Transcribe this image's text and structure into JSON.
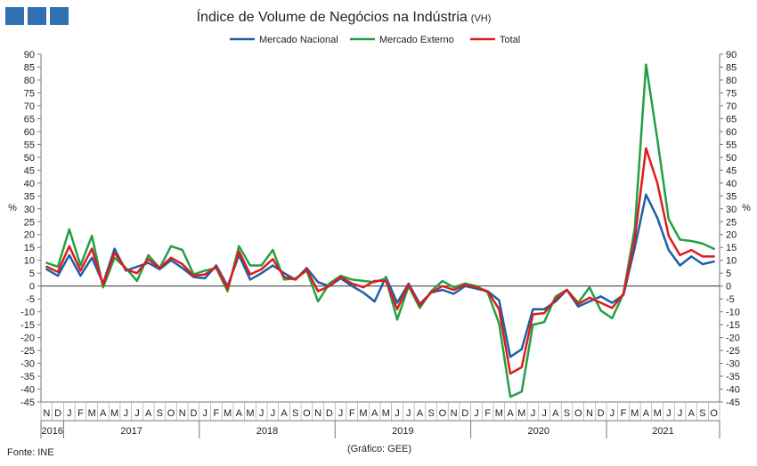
{
  "logo": {
    "color": "#2f6fb3"
  },
  "source_label": "Fonte: INE",
  "credit_label": "(Gráfico: GEE)",
  "chart_data": {
    "type": "line",
    "title": "Índice de Volume de Negócios na Indústria",
    "title_suffix": "(VH)",
    "ylabel_left": "%",
    "ylabel_right": "%",
    "ylim": [
      -45,
      90
    ],
    "yticks": [
      -45,
      -40,
      -35,
      -30,
      -25,
      -20,
      -15,
      -10,
      -5,
      0,
      5,
      10,
      15,
      20,
      25,
      30,
      35,
      40,
      45,
      50,
      55,
      60,
      65,
      70,
      75,
      80,
      85,
      90
    ],
    "grid": false,
    "legend_position": "top",
    "x": [
      "N",
      "D",
      "J",
      "F",
      "M",
      "A",
      "M",
      "J",
      "J",
      "A",
      "S",
      "O",
      "N",
      "D",
      "J",
      "F",
      "M",
      "A",
      "M",
      "J",
      "J",
      "A",
      "S",
      "O",
      "N",
      "D",
      "J",
      "F",
      "M",
      "A",
      "M",
      "J",
      "J",
      "A",
      "S",
      "O",
      "N",
      "D",
      "J",
      "F",
      "M",
      "A",
      "M",
      "J",
      "J",
      "A",
      "S",
      "O",
      "N",
      "D",
      "J",
      "F",
      "M",
      "A",
      "M",
      "J",
      "J",
      "A",
      "S",
      "O"
    ],
    "years": [
      {
        "label": "2016",
        "start": 0,
        "count": 2
      },
      {
        "label": "2017",
        "start": 2,
        "count": 12
      },
      {
        "label": "2018",
        "start": 14,
        "count": 12
      },
      {
        "label": "2019",
        "start": 26,
        "count": 12
      },
      {
        "label": "2020",
        "start": 38,
        "count": 12
      },
      {
        "label": "2021",
        "start": 50,
        "count": 10
      }
    ],
    "series": [
      {
        "name": "Mercado Nacional",
        "color": "#1f5fa8",
        "values": [
          6.5,
          4,
          12,
          4,
          11,
          1,
          14.5,
          6,
          7.5,
          9,
          6.5,
          10,
          7,
          3.5,
          3,
          8,
          0,
          12,
          2.5,
          5,
          8,
          5,
          2.5,
          7,
          1.5,
          0,
          3,
          0,
          -2.5,
          -6,
          3.5,
          -6.5,
          1,
          -7,
          -2.5,
          -1.5,
          -3,
          0,
          -1,
          -2,
          -5.5,
          -27.5,
          -24.5,
          -9,
          -9,
          -6,
          -1.5,
          -8,
          -6,
          -4,
          -6.5,
          -3.5,
          15,
          35.5,
          26.5,
          14,
          8,
          11.5,
          8.5,
          9.5
        ]
      },
      {
        "name": "Mercado Externo",
        "color": "#22a046",
        "values": [
          9,
          7.5,
          22,
          8,
          19.5,
          -0.5,
          11,
          7,
          2,
          12,
          7,
          15.5,
          14,
          4.5,
          6,
          7,
          -2,
          15.5,
          8,
          8,
          14,
          2.5,
          3,
          6,
          -6,
          1,
          4,
          2.5,
          2,
          1.5,
          3,
          -13,
          0,
          -8.5,
          -2,
          2,
          -0.5,
          1,
          0,
          -2.5,
          -14.5,
          -43,
          -41,
          -15,
          -14,
          -4,
          -1.5,
          -6.5,
          -0.5,
          -9.5,
          -12.5,
          -3,
          22.5,
          86,
          57,
          26,
          18,
          17.5,
          16.5,
          14.5
        ]
      },
      {
        "name": "Total",
        "color": "#e01b1b",
        "values": [
          7.5,
          5.5,
          15.5,
          6,
          14.5,
          0.5,
          13,
          6.5,
          5,
          10.5,
          7,
          11,
          8.5,
          4,
          4.5,
          7.5,
          -1,
          13.5,
          4.5,
          6.5,
          10.5,
          3.5,
          2.5,
          6.5,
          -2,
          0,
          3.5,
          1,
          -0.5,
          2,
          2,
          -9,
          0.5,
          -7.5,
          -2.5,
          0,
          -1.5,
          0.5,
          -0.5,
          -2,
          -9,
          -34,
          -31.5,
          -11,
          -10.5,
          -5,
          -1.5,
          -7,
          -4.5,
          -6.5,
          -8.5,
          -3,
          18.5,
          53.5,
          40,
          19.5,
          12,
          14,
          11.5,
          11.5
        ]
      }
    ]
  }
}
